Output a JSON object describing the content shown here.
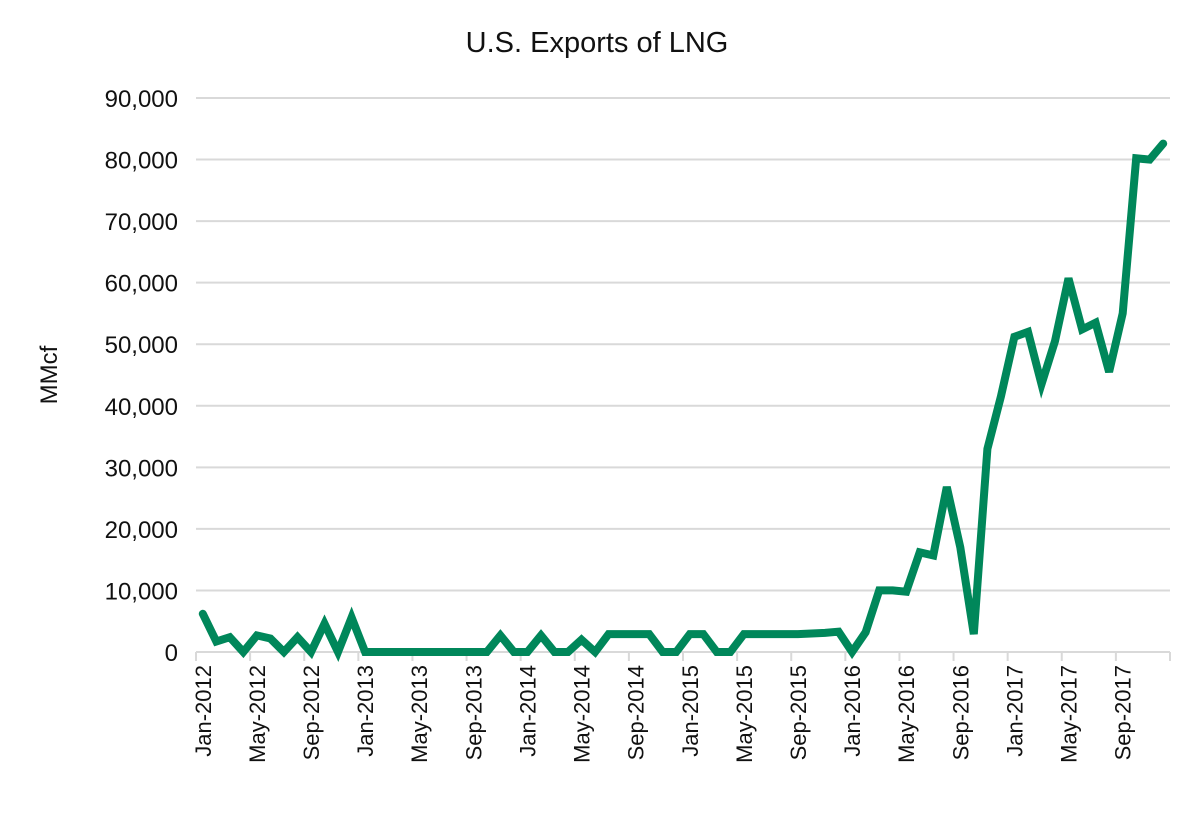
{
  "chart_data": {
    "type": "line",
    "title": "U.S. Exports of LNG",
    "xlabel": "",
    "ylabel": "MMcf",
    "ylim": [
      0,
      90000
    ],
    "yticks": [
      "0",
      "10,000",
      "20,000",
      "30,000",
      "40,000",
      "50,000",
      "60,000",
      "70,000",
      "80,000",
      "90,000"
    ],
    "tick_labels": [
      "Jan-2012",
      "May-2012",
      "Sep-2012",
      "Jan-2013",
      "May-2013",
      "Sep-2013",
      "Jan-2014",
      "May-2014",
      "Sep-2014",
      "Jan-2015",
      "May-2015",
      "Sep-2015",
      "Jan-2016",
      "May-2016",
      "Sep-2016",
      "Jan-2017",
      "May-2017",
      "Sep-2017"
    ],
    "grid": true,
    "legend": "none",
    "line_color": "#00875a",
    "x": [
      "Jan-2012",
      "Feb-2012",
      "Mar-2012",
      "Apr-2012",
      "May-2012",
      "Jun-2012",
      "Jul-2012",
      "Aug-2012",
      "Sep-2012",
      "Oct-2012",
      "Nov-2012",
      "Dec-2012",
      "Jan-2013",
      "Feb-2013",
      "Mar-2013",
      "Apr-2013",
      "May-2013",
      "Jun-2013",
      "Jul-2013",
      "Aug-2013",
      "Sep-2013",
      "Oct-2013",
      "Nov-2013",
      "Dec-2013",
      "Jan-2014",
      "Feb-2014",
      "Mar-2014",
      "Apr-2014",
      "May-2014",
      "Jun-2014",
      "Jul-2014",
      "Aug-2014",
      "Sep-2014",
      "Oct-2014",
      "Nov-2014",
      "Dec-2014",
      "Jan-2015",
      "Feb-2015",
      "Mar-2015",
      "Apr-2015",
      "May-2015",
      "Jun-2015",
      "Jul-2015",
      "Aug-2015",
      "Sep-2015",
      "Oct-2015",
      "Nov-2015",
      "Dec-2015",
      "Jan-2016",
      "Feb-2016",
      "Mar-2016",
      "Apr-2016",
      "May-2016",
      "Jun-2016",
      "Jul-2016",
      "Aug-2016",
      "Sep-2016",
      "Oct-2016",
      "Nov-2016",
      "Dec-2016",
      "Jan-2017",
      "Feb-2017",
      "Mar-2017",
      "Apr-2017",
      "May-2017",
      "Jun-2017",
      "Jul-2017",
      "Aug-2017",
      "Sep-2017",
      "Oct-2017",
      "Nov-2017",
      "Dec-2017"
    ],
    "values": [
      6200,
      1700,
      2400,
      0,
      2700,
      2200,
      0,
      2400,
      0,
      4600,
      0,
      5600,
      0,
      0,
      0,
      0,
      0,
      0,
      0,
      0,
      0,
      0,
      2700,
      0,
      0,
      2700,
      0,
      0,
      2000,
      0,
      2900,
      2900,
      2900,
      2900,
      0,
      0,
      2900,
      2900,
      0,
      0,
      2900,
      2900,
      2900,
      2900,
      2900,
      3000,
      3100,
      3300,
      0,
      3200,
      10000,
      10000,
      9800,
      16200,
      15700,
      26800,
      17000,
      2900,
      33000,
      41500,
      51200,
      52000,
      43500,
      50500,
      60700,
      52400,
      53500,
      45500,
      55000,
      80200,
      80000,
      82600
    ]
  }
}
